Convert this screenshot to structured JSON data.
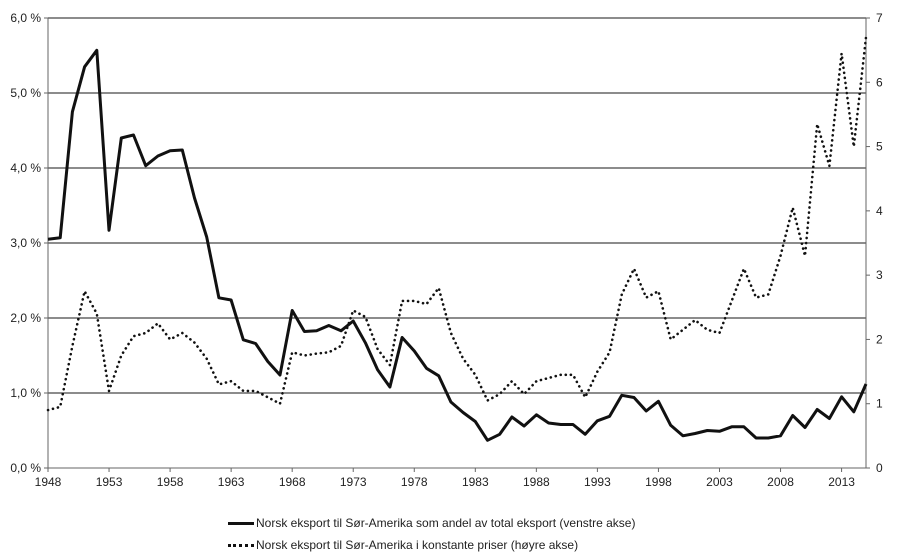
{
  "chart_data": {
    "type": "line",
    "x": [
      1948,
      1949,
      1950,
      1951,
      1952,
      1953,
      1954,
      1955,
      1956,
      1957,
      1958,
      1959,
      1960,
      1961,
      1962,
      1963,
      1964,
      1965,
      1966,
      1967,
      1968,
      1969,
      1970,
      1971,
      1972,
      1973,
      1974,
      1975,
      1976,
      1977,
      1978,
      1979,
      1980,
      1981,
      1982,
      1983,
      1984,
      1985,
      1986,
      1987,
      1988,
      1989,
      1990,
      1991,
      1992,
      1993,
      1994,
      1995,
      1996,
      1997,
      1998,
      1999,
      2000,
      2001,
      2002,
      2003,
      2004,
      2005,
      2006,
      2007,
      2008,
      2009,
      2010,
      2011,
      2012,
      2013,
      2014,
      2015
    ],
    "series": [
      {
        "name": "Norsk eksport til Sør-Amerika som andel av total eksport (venstre akse)",
        "axis": "left",
        "style": "solid",
        "values": [
          3.05,
          3.07,
          4.75,
          5.35,
          5.57,
          3.17,
          4.4,
          4.44,
          4.03,
          4.16,
          4.23,
          4.24,
          3.6,
          3.08,
          2.27,
          2.24,
          1.71,
          1.66,
          1.42,
          1.24,
          2.1,
          1.82,
          1.83,
          1.9,
          1.83,
          1.96,
          1.67,
          1.31,
          1.08,
          1.74,
          1.56,
          1.33,
          1.23,
          0.88,
          0.74,
          0.62,
          0.37,
          0.45,
          0.68,
          0.56,
          0.71,
          0.6,
          0.58,
          0.58,
          0.45,
          0.63,
          0.69,
          0.97,
          0.94,
          0.76,
          0.89,
          0.57,
          0.43,
          0.46,
          0.5,
          0.49,
          0.55,
          0.55,
          0.4,
          0.4,
          0.43,
          0.7,
          0.54,
          0.78,
          0.66,
          0.95,
          0.75,
          1.12
        ]
      },
      {
        "name": "Norsk eksport til Sør-Amerika i konstante priser (høyre akse)",
        "axis": "right",
        "style": "dotted",
        "values": [
          0.9,
          0.95,
          1.9,
          2.75,
          2.4,
          1.2,
          1.75,
          2.05,
          2.1,
          2.25,
          2.0,
          2.1,
          1.95,
          1.7,
          1.3,
          1.35,
          1.2,
          1.2,
          1.1,
          1.0,
          1.8,
          1.75,
          1.78,
          1.8,
          1.9,
          2.45,
          2.35,
          1.85,
          1.6,
          2.6,
          2.6,
          2.55,
          2.8,
          2.1,
          1.7,
          1.45,
          1.05,
          1.15,
          1.35,
          1.15,
          1.35,
          1.4,
          1.45,
          1.45,
          1.1,
          1.5,
          1.8,
          2.7,
          3.1,
          2.65,
          2.75,
          2.0,
          2.15,
          2.3,
          2.15,
          2.1,
          2.6,
          3.1,
          2.65,
          2.7,
          3.3,
          4.05,
          3.3,
          5.35,
          4.7,
          6.45,
          5.0,
          6.7
        ]
      }
    ],
    "y_left": {
      "ylim": [
        0,
        6
      ],
      "ticks": [
        0,
        1,
        2,
        3,
        4,
        5,
        6
      ],
      "tick_labels": [
        "0,0 %",
        "1,0 %",
        "2,0 %",
        "3,0 %",
        "4,0 %",
        "5,0 %",
        "6,0 %"
      ]
    },
    "y_right": {
      "ylim": [
        0,
        7
      ],
      "ticks": [
        0,
        1,
        2,
        3,
        4,
        5,
        6,
        7
      ],
      "tick_labels": [
        "0",
        "1",
        "2",
        "3",
        "4",
        "5",
        "6",
        "7"
      ]
    },
    "x_axis": {
      "xlim": [
        1948,
        2015
      ],
      "ticks": [
        1948,
        1953,
        1958,
        1963,
        1968,
        1973,
        1978,
        1983,
        1988,
        1993,
        1998,
        2003,
        2008,
        2013
      ],
      "tick_labels": [
        "1948",
        "1953",
        "1958",
        "1963",
        "1968",
        "1973",
        "1978",
        "1983",
        "1988",
        "1993",
        "1998",
        "2003",
        "2008",
        "2013"
      ]
    },
    "grid": "horizontal",
    "legend_position": "bottom",
    "colors": {
      "line": "#111111",
      "grid": "#1a1a1a",
      "axis": "#666666"
    }
  }
}
